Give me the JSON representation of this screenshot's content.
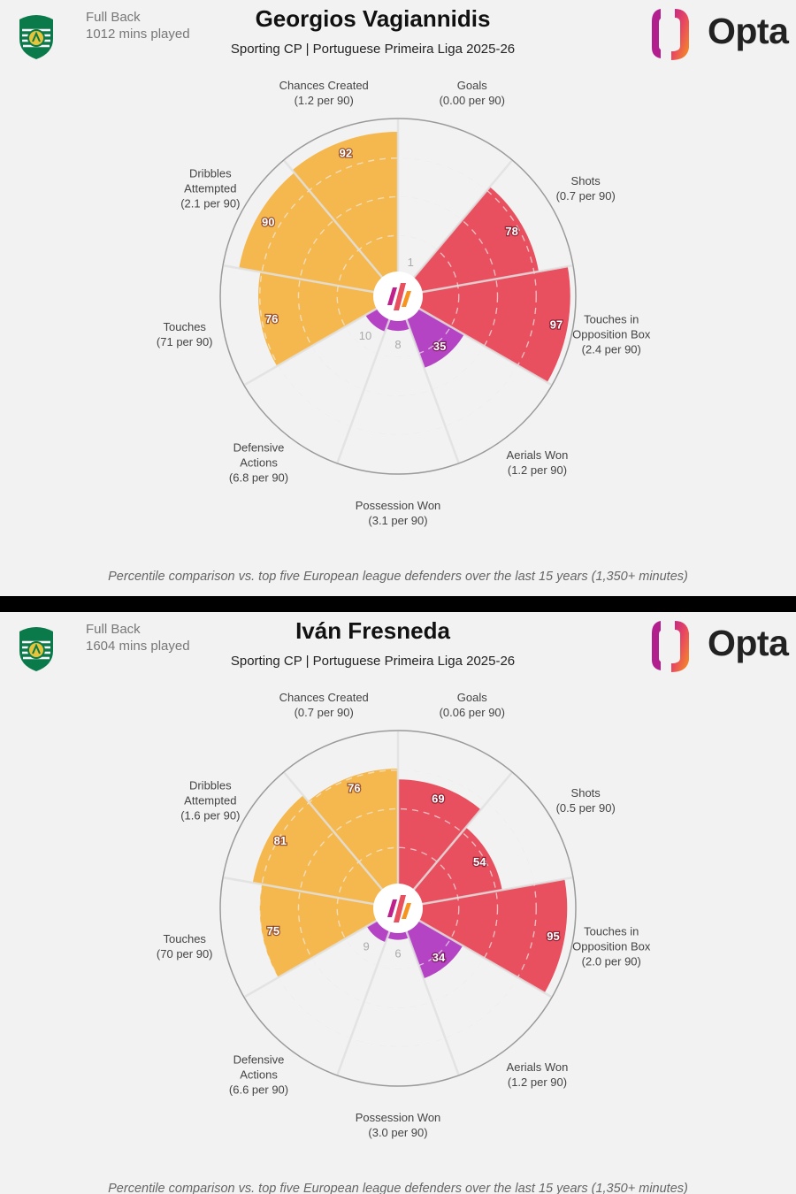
{
  "colors": {
    "background": "#f2f2f2",
    "attacking": "#e8505f",
    "possession": "#f5b84e",
    "defending": "#b444c4",
    "grid": "#cccccc"
  },
  "brand": {
    "opta_label": "Opta"
  },
  "footnote": "Percentile comparison vs. top five European league defenders over the last 15 years (1,350+ minutes)",
  "chart_data": [
    {
      "type": "polar-bar",
      "player": "Georgios Vagiannidis",
      "position": "Full Back",
      "minutes": "1012 mins played",
      "subtitle": "Sporting CP | Portuguese Primeira Liga 2025-26",
      "range": [
        0,
        100
      ],
      "categories": [
        {
          "name": [
            "Goals"
          ],
          "per90": "(0.00 per 90)",
          "value": 1,
          "group": "attacking"
        },
        {
          "name": [
            "Shots"
          ],
          "per90": "(0.7 per 90)",
          "value": 78,
          "group": "attacking"
        },
        {
          "name": [
            "Touches in",
            "Opposition Box"
          ],
          "per90": "(2.4 per 90)",
          "value": 97,
          "group": "attacking"
        },
        {
          "name": [
            "Aerials Won"
          ],
          "per90": "(1.2 per 90)",
          "value": 35,
          "group": "defending"
        },
        {
          "name": [
            "Possession Won"
          ],
          "per90": "(3.1 per 90)",
          "value": 8,
          "group": "defending"
        },
        {
          "name": [
            "Defensive",
            "Actions"
          ],
          "per90": "(6.8 per 90)",
          "value": 10,
          "group": "defending"
        },
        {
          "name": [
            "Touches"
          ],
          "per90": "(71 per 90)",
          "value": 76,
          "group": "possession"
        },
        {
          "name": [
            "Dribbles",
            "Attempted"
          ],
          "per90": "(2.1 per 90)",
          "value": 90,
          "group": "possession"
        },
        {
          "name": [
            "Chances Created"
          ],
          "per90": "(1.2 per 90)",
          "value": 92,
          "group": "possession"
        }
      ]
    },
    {
      "type": "polar-bar",
      "player": "Iván Fresneda",
      "position": "Full Back",
      "minutes": "1604 mins played",
      "subtitle": "Sporting CP | Portuguese Primeira Liga 2025-26",
      "range": [
        0,
        100
      ],
      "categories": [
        {
          "name": [
            "Goals"
          ],
          "per90": "(0.06 per 90)",
          "value": 69,
          "group": "attacking"
        },
        {
          "name": [
            "Shots"
          ],
          "per90": "(0.5 per 90)",
          "value": 54,
          "group": "attacking"
        },
        {
          "name": [
            "Touches in",
            "Opposition Box"
          ],
          "per90": "(2.0 per 90)",
          "value": 95,
          "group": "attacking"
        },
        {
          "name": [
            "Aerials Won"
          ],
          "per90": "(1.2 per 90)",
          "value": 34,
          "group": "defending"
        },
        {
          "name": [
            "Possession Won"
          ],
          "per90": "(3.0 per 90)",
          "value": 6,
          "group": "defending"
        },
        {
          "name": [
            "Defensive",
            "Actions"
          ],
          "per90": "(6.6 per 90)",
          "value": 9,
          "group": "defending"
        },
        {
          "name": [
            "Touches"
          ],
          "per90": "(70 per 90)",
          "value": 75,
          "group": "possession"
        },
        {
          "name": [
            "Dribbles",
            "Attempted"
          ],
          "per90": "(1.6 per 90)",
          "value": 81,
          "group": "possession"
        },
        {
          "name": [
            "Chances Created"
          ],
          "per90": "(0.7 per 90)",
          "value": 76,
          "group": "possession"
        }
      ]
    }
  ]
}
